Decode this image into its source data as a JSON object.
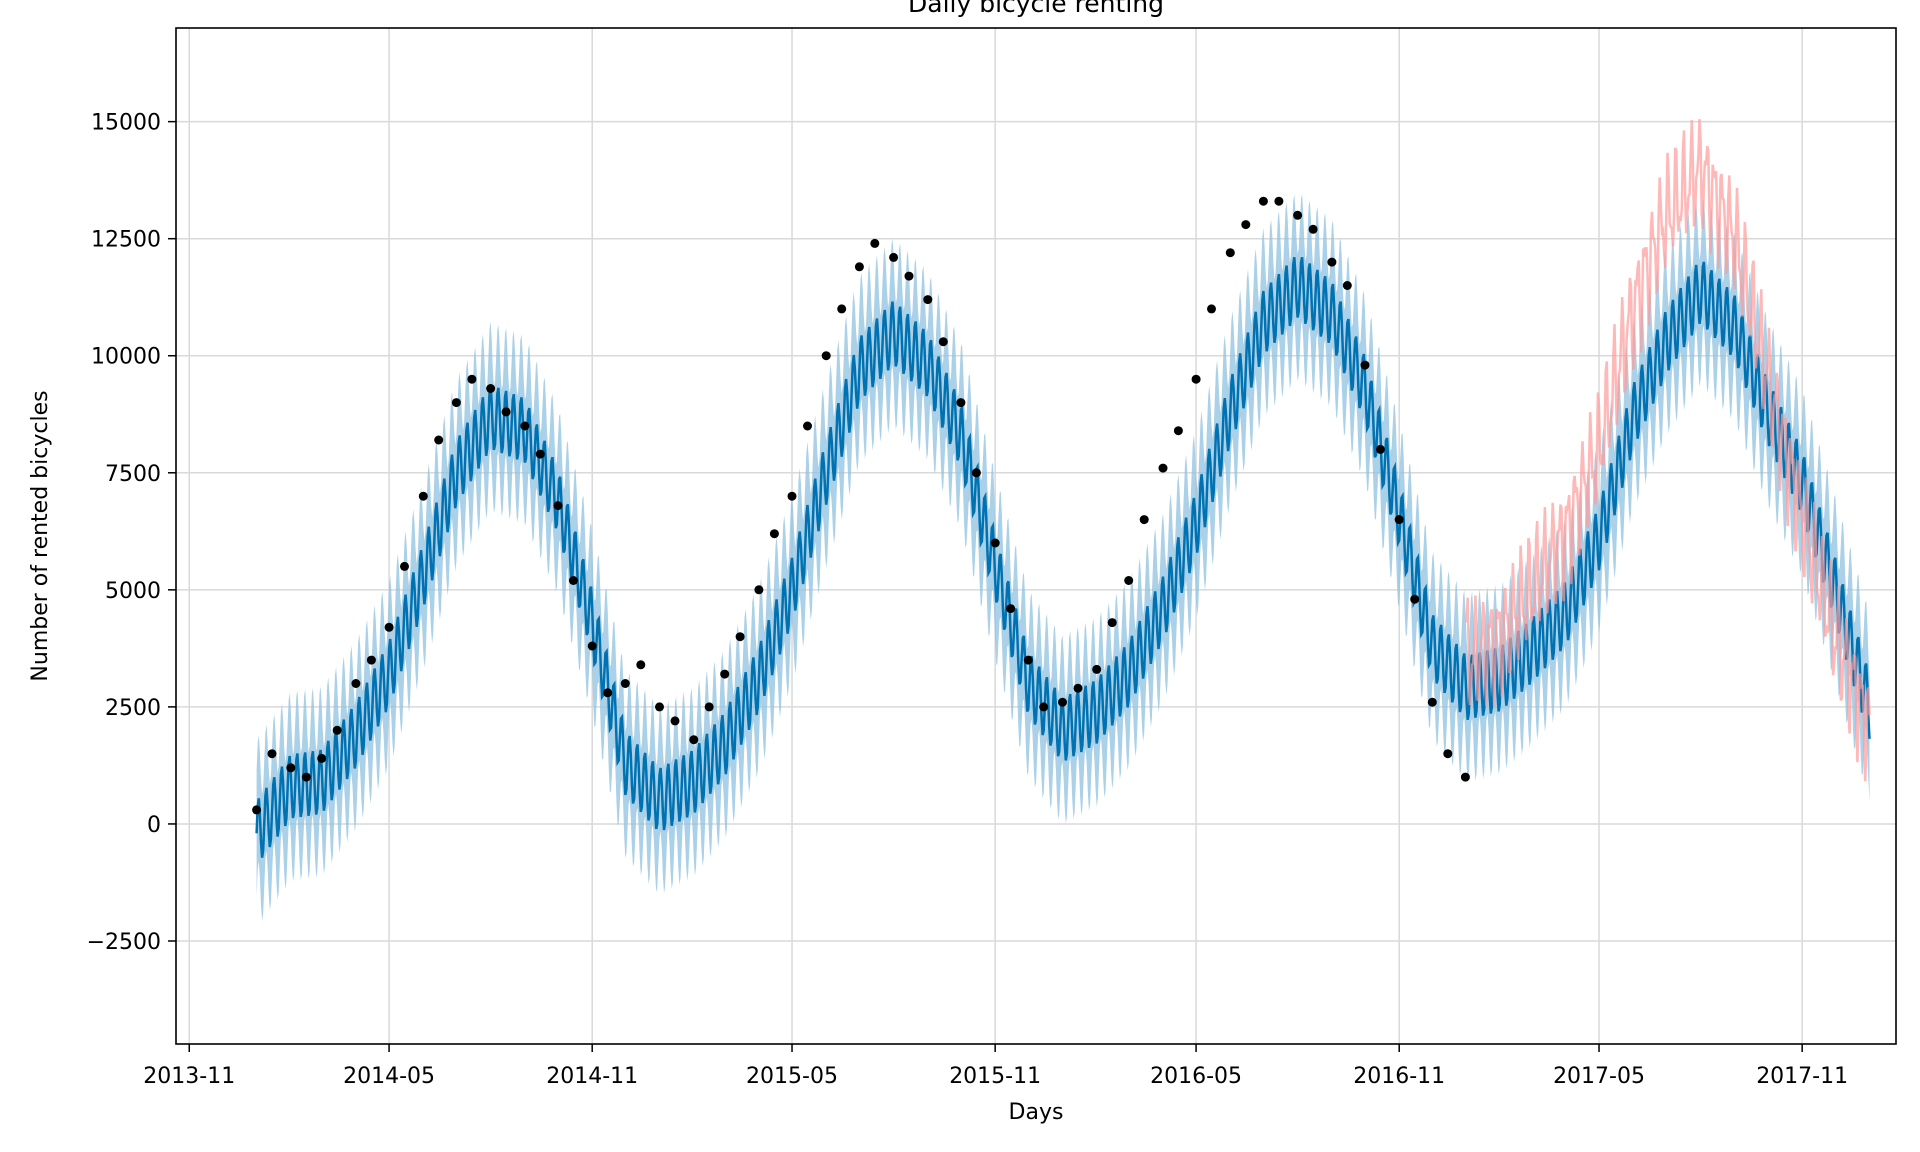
{
  "chart_data": {
    "type": "line",
    "title": "Daily bicycle renting",
    "xlabel": "Days",
    "ylabel": "Number of rented bicycles",
    "xlim": [
      "2013-10-20",
      "2018-01-25"
    ],
    "ylim": [
      -4700,
      17000
    ],
    "grid": true,
    "x_ticks": [
      "2013-11",
      "2014-05",
      "2014-11",
      "2015-05",
      "2015-11",
      "2016-05",
      "2016-11",
      "2017-05",
      "2017-11"
    ],
    "y_ticks": [
      -2500,
      0,
      2500,
      5000,
      7500,
      10000,
      12500,
      15000
    ],
    "x_tick_labels": [
      "2013-11",
      "2014-05",
      "2014-11",
      "2015-05",
      "2015-11",
      "2016-05",
      "2016-11",
      "2017-05",
      "2017-11"
    ],
    "y_tick_labels": [
      "−2500",
      "0",
      "2500",
      "5000",
      "7500",
      "10000",
      "12500",
      "15000"
    ],
    "colors": {
      "forecast": "#0072b2",
      "interval": "#8ec2df",
      "observed": "#000000",
      "actual": "#ff9a9a"
    },
    "series": [
      {
        "role": "observed",
        "style": "points",
        "x": [
          "2014-01-01",
          "2014-01-15",
          "2014-02-01",
          "2014-02-15",
          "2014-03-01",
          "2014-03-15",
          "2014-04-01",
          "2014-04-15",
          "2014-05-01",
          "2014-05-15",
          "2014-06-01",
          "2014-06-15",
          "2014-07-01",
          "2014-07-15",
          "2014-08-01",
          "2014-08-15",
          "2014-09-01",
          "2014-09-15",
          "2014-10-01",
          "2014-10-15",
          "2014-11-01",
          "2014-11-15",
          "2014-12-01",
          "2014-12-15",
          "2015-01-01",
          "2015-01-15",
          "2015-02-01",
          "2015-02-15",
          "2015-03-01",
          "2015-03-15",
          "2015-04-01",
          "2015-04-15",
          "2015-05-01",
          "2015-05-15",
          "2015-06-01",
          "2015-06-15",
          "2015-07-01",
          "2015-07-15",
          "2015-08-01",
          "2015-08-15",
          "2015-09-01",
          "2015-09-15",
          "2015-10-01",
          "2015-10-15",
          "2015-11-01",
          "2015-11-15",
          "2015-12-01",
          "2015-12-15",
          "2016-01-01",
          "2016-01-15",
          "2016-02-01",
          "2016-02-15",
          "2016-03-01",
          "2016-03-15",
          "2016-04-01",
          "2016-04-15",
          "2016-05-01",
          "2016-05-15",
          "2016-06-01",
          "2016-06-15",
          "2016-07-01",
          "2016-07-15",
          "2016-08-01",
          "2016-08-15",
          "2016-09-01",
          "2016-09-15",
          "2016-10-01",
          "2016-10-15",
          "2016-11-01",
          "2016-11-15",
          "2016-12-01",
          "2016-12-15",
          "2016-12-31"
        ],
        "y": [
          300,
          1500,
          1200,
          1000,
          1400,
          2000,
          3000,
          3500,
          4200,
          5500,
          7000,
          8200,
          9000,
          9500,
          9300,
          8800,
          8500,
          7900,
          6800,
          5200,
          3800,
          2800,
          3000,
          3400,
          2500,
          2200,
          1800,
          2500,
          3200,
          4000,
          5000,
          6200,
          7000,
          8500,
          10000,
          11000,
          11900,
          12400,
          12100,
          11700,
          11200,
          10300,
          9000,
          7500,
          6000,
          4600,
          3500,
          2500,
          2600,
          2900,
          3300,
          4300,
          5200,
          6500,
          7600,
          8400,
          9500,
          11000,
          12200,
          12800,
          13300,
          13300,
          13000,
          12700,
          12000,
          11500,
          9800,
          8000,
          6500,
          4800,
          2600,
          1500,
          1000
        ]
      },
      {
        "role": "forecast",
        "style": "line",
        "x": [
          "2014-01-01",
          "2014-02-01",
          "2014-03-01",
          "2014-04-01",
          "2014-05-01",
          "2014-06-01",
          "2014-07-01",
          "2014-08-01",
          "2014-09-01",
          "2014-10-01",
          "2014-11-01",
          "2014-12-01",
          "2015-01-01",
          "2015-02-01",
          "2015-03-01",
          "2015-04-01",
          "2015-05-01",
          "2015-06-01",
          "2015-07-01",
          "2015-08-01",
          "2015-09-01",
          "2015-10-01",
          "2015-11-01",
          "2015-12-01",
          "2016-01-01",
          "2016-02-01",
          "2016-03-01",
          "2016-04-01",
          "2016-05-01",
          "2016-06-01",
          "2016-07-01",
          "2016-08-01",
          "2016-09-01",
          "2016-10-01",
          "2016-11-01",
          "2016-12-01",
          "2017-01-01",
          "2017-02-01",
          "2017-03-01",
          "2017-04-01",
          "2017-05-01",
          "2017-06-01",
          "2017-07-01",
          "2017-08-01",
          "2017-09-01",
          "2017-10-01",
          "2017-11-01",
          "2017-12-01",
          "2018-01-01"
        ],
        "y": [
          -200,
          800,
          900,
          1900,
          3200,
          5300,
          7500,
          8700,
          8400,
          6900,
          4300,
          1300,
          500,
          900,
          1700,
          3100,
          5000,
          7500,
          9700,
          10500,
          9800,
          8300,
          5500,
          3000,
          2000,
          2400,
          3200,
          4600,
          6400,
          8800,
          10700,
          11500,
          10900,
          9300,
          6600,
          3800,
          2900,
          3100,
          3700,
          4500,
          6100,
          8700,
          10300,
          11400,
          10600,
          8800,
          7300,
          5000,
          2500
        ]
      },
      {
        "role": "actual",
        "style": "line",
        "x": [
          "2017-01-01",
          "2017-02-01",
          "2017-03-01",
          "2017-04-01",
          "2017-05-01",
          "2017-06-01",
          "2017-07-01",
          "2017-08-01",
          "2017-09-01",
          "2017-10-01",
          "2017-11-01",
          "2017-12-01",
          "2018-01-01"
        ],
        "y": [
          3500,
          4000,
          5000,
          6200,
          8000,
          11000,
          13000,
          14000,
          12500,
          9500,
          6500,
          4000,
          2000
        ]
      }
    ]
  }
}
